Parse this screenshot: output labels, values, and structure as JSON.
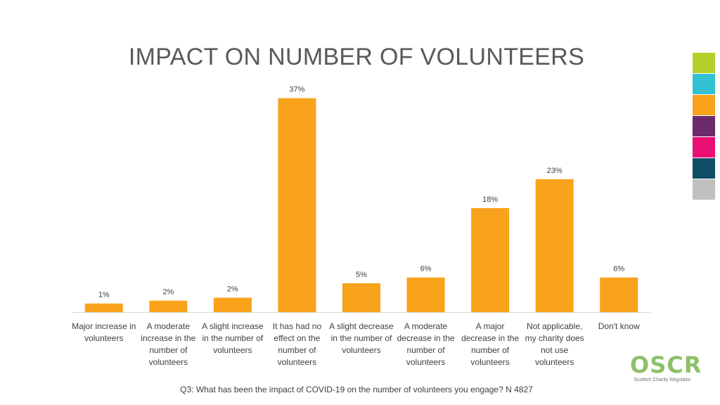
{
  "title": "IMPACT ON NUMBER OF VOLUNTEERS",
  "footnote": "Q3: What has been the impact of COVID-19 on the number of volunteers you engage? N 4827",
  "brand": {
    "name": "OSCR",
    "tagline": "Scottish Charity Regulator",
    "logo_color": "#8dc06a",
    "swatches": [
      "#b5cf2a",
      "#34c0d3",
      "#f9a21b",
      "#6d2a6b",
      "#ea0f73",
      "#0f4d66",
      "#c0c0c0"
    ]
  },
  "chart_data": {
    "type": "bar",
    "categories": [
      "Major increase in volunteers",
      "A moderate increase in the number of volunteers",
      "A slight increase in the number of volunteers",
      "It has had no effect on the number of volunteers",
      "A slight decrease in the number of volunteers",
      "A moderate decrease in the number of volunteers",
      "A major decrease in the number of volunteers",
      "Not applicable, my charity does not use volunteers",
      "Don't know"
    ],
    "values": [
      1.5,
      2,
      2.5,
      37,
      5,
      6,
      18,
      23,
      6
    ],
    "data_labels": [
      "1%",
      "2%",
      "2%",
      "37%",
      "5%",
      "6%",
      "18%",
      "23%",
      "6%"
    ],
    "bar_color": "#f9a21b",
    "ylim": [
      0,
      40
    ],
    "grid": false,
    "legend": "none",
    "xlabel": "",
    "ylabel": ""
  }
}
